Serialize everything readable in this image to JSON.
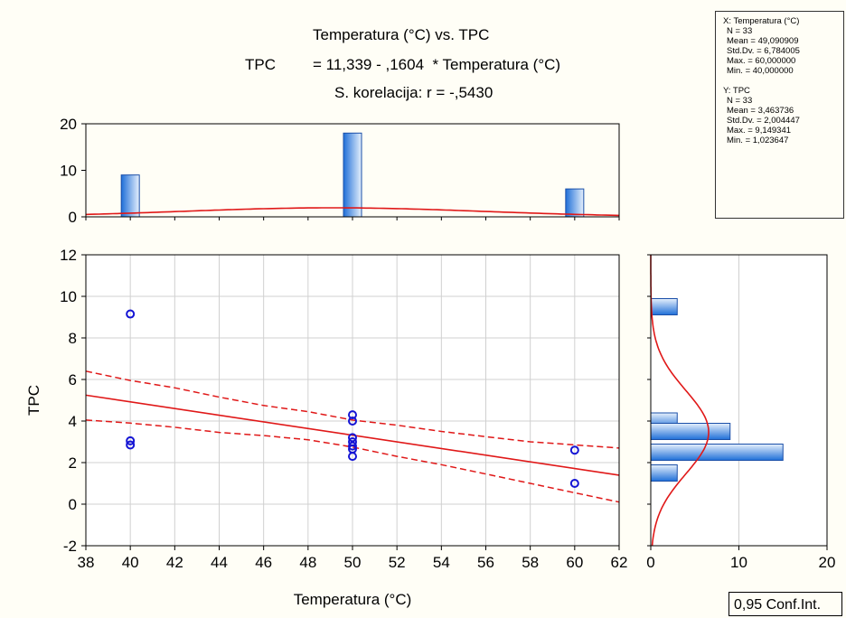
{
  "header": {
    "title": "Temperatura (°C) vs. TPC",
    "eq_lhs": "TPC",
    "eq_rhs": "= 11,339 - ,1604  * Temperatura (°C)",
    "correlation": "S. korelacija: r = -,5430"
  },
  "stats_box": {
    "x_head": "X: Temperatura (°C)",
    "x_lines": [
      "N = 33",
      "Mean = 49,090909",
      "Std.Dv. = 6,784005",
      "Max. = 60,000000",
      "Min. = 40,000000"
    ],
    "y_head": "Y: TPC",
    "y_lines": [
      "N = 33",
      "Mean = 3,463736",
      "Std.Dv. = 2,004447",
      "Max. = 9,149341",
      "Min. = 1,023647"
    ]
  },
  "conf_label": "0,95 Conf.Int.",
  "colors": {
    "points": "#1414d4",
    "fit": "#e01818",
    "bar_fill": "#4a8ee6",
    "grid": "#d0d0d0"
  },
  "chart_data": [
    {
      "id": "scatter",
      "type": "scatter",
      "xlabel": "Temperatura (°C)",
      "ylabel": "TPC",
      "xlim": [
        38,
        62
      ],
      "ylim": [
        -2,
        12
      ],
      "xticks": [
        "38",
        "40",
        "42",
        "44",
        "46",
        "48",
        "50",
        "52",
        "54",
        "56",
        "58",
        "60",
        "62"
      ],
      "yticks": [
        "-2",
        "0",
        "2",
        "4",
        "6",
        "8",
        "10",
        "12"
      ],
      "grid": true,
      "points": [
        [
          40,
          9.15
        ],
        [
          40,
          3.05
        ],
        [
          40,
          2.85
        ],
        [
          50,
          4.3
        ],
        [
          50,
          4.0
        ],
        [
          50,
          3.2
        ],
        [
          50,
          3.0
        ],
        [
          50,
          2.8
        ],
        [
          50,
          2.65
        ],
        [
          50,
          2.3
        ],
        [
          60,
          2.6
        ],
        [
          60,
          1.0
        ]
      ],
      "fit": {
        "intercept": 11.339,
        "slope": -0.1604
      },
      "ci_upper": [
        [
          38,
          6.4
        ],
        [
          40,
          5.95
        ],
        [
          42,
          5.6
        ],
        [
          44,
          5.15
        ],
        [
          46,
          4.75
        ],
        [
          48,
          4.45
        ],
        [
          50,
          4.05
        ],
        [
          52,
          3.8
        ],
        [
          54,
          3.5
        ],
        [
          56,
          3.25
        ],
        [
          58,
          3.0
        ],
        [
          60,
          2.85
        ],
        [
          62,
          2.7
        ]
      ],
      "ci_lower": [
        [
          38,
          4.05
        ],
        [
          40,
          3.9
        ],
        [
          42,
          3.7
        ],
        [
          44,
          3.45
        ],
        [
          46,
          3.3
        ],
        [
          48,
          3.1
        ],
        [
          50,
          2.75
        ],
        [
          52,
          2.3
        ],
        [
          54,
          1.9
        ],
        [
          56,
          1.45
        ],
        [
          58,
          1.0
        ],
        [
          60,
          0.55
        ],
        [
          62,
          0.1
        ]
      ]
    },
    {
      "id": "x-histogram",
      "type": "bar",
      "ylim": [
        0,
        20
      ],
      "yticks": [
        "0",
        "10",
        "20"
      ],
      "bars": [
        {
          "x": 40,
          "count": 9
        },
        {
          "x": 50,
          "count": 18
        },
        {
          "x": 60,
          "count": 6
        }
      ],
      "normal_curve": {
        "mean": 49.090909,
        "sd": 6.784005
      }
    },
    {
      "id": "y-histogram",
      "type": "bar",
      "xlim": [
        0,
        20
      ],
      "xticks": [
        "0",
        "10",
        "20"
      ],
      "bars": [
        {
          "y": 9.5,
          "count": 3
        },
        {
          "y": 4.0,
          "count": 3
        },
        {
          "y": 3.5,
          "count": 9
        },
        {
          "y": 2.5,
          "count": 15
        },
        {
          "y": 1.5,
          "count": 3
        }
      ],
      "normal_curve": {
        "mean": 3.463736,
        "sd": 2.004447
      }
    }
  ]
}
